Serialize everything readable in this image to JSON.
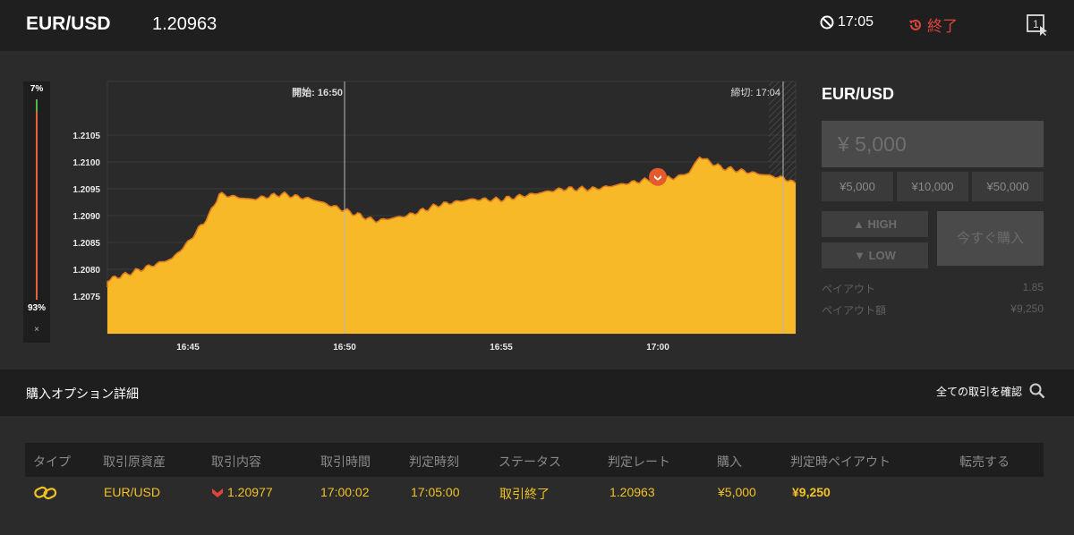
{
  "top": {
    "pair": "EUR/USD",
    "price": "1.20963",
    "clock": "17:05",
    "end_label": "終了",
    "icon_expiry": "clock-ban-icon",
    "icon_end": "history-icon",
    "icon_window": "window-one-icon"
  },
  "sentiment": {
    "up": "7%",
    "down": "93%",
    "close": "×"
  },
  "chart_data": {
    "type": "area",
    "y_ticks": [
      "1.2105",
      "1.2100",
      "1.2095",
      "1.2090",
      "1.2085",
      "1.2080",
      "1.2075"
    ],
    "x_ticks": [
      "16:45",
      "16:50",
      "16:55",
      "17:00"
    ],
    "start_label": "開始: 16:50",
    "end_label": "締切: 17:04",
    "ylim": [
      1.2068,
      1.2115
    ],
    "colors": {
      "fill": "#f7b928",
      "line": "#e07a1e",
      "marker": "#e35a2b",
      "bg": "#2a2a2a"
    },
    "series": [
      {
        "x": [
          "16:41:20",
          "16:42",
          "16:43",
          "16:44",
          "16:44:30",
          "16:45",
          "16:45:40",
          "16:46",
          "16:47",
          "16:48",
          "16:49",
          "16:50",
          "16:51",
          "16:52",
          "16:53",
          "16:54",
          "16:55",
          "16:56",
          "16:57",
          "16:58",
          "16:59",
          "17:00",
          "17:00:30",
          "17:01",
          "17:01:20",
          "17:02",
          "17:03",
          "17:04",
          "17:05"
        ],
        "y": [
          1.2077,
          1.2078,
          1.2079,
          1.2081,
          1.2082,
          1.2085,
          1.209,
          1.2094,
          1.2093,
          1.2094,
          1.2093,
          1.2091,
          1.2089,
          1.209,
          1.2092,
          1.2093,
          1.2093,
          1.2094,
          1.2095,
          1.2095,
          1.2096,
          1.2097,
          1.2097,
          1.2098,
          1.2101,
          1.2099,
          1.2098,
          1.2097,
          1.2096
        ]
      }
    ],
    "marker": {
      "x": "17:00",
      "y": 1.20977
    }
  },
  "sidebar": {
    "pair": "EUR/USD",
    "amount": "¥ 5,000",
    "chips": [
      "¥5,000",
      "¥10,000",
      "¥50,000"
    ],
    "high": "HIGH",
    "low": "LOW",
    "buy_now": "今すぐ購入",
    "payout_label": "ペイアウト",
    "payout_value": "1.85",
    "payout_amount_label": "ペイアウト額",
    "payout_amount_value": "¥9,250"
  },
  "detail": {
    "title": "購入オプション詳細",
    "all_trades": "全ての取引を確認"
  },
  "table": {
    "headers": [
      "タイプ",
      "取引原資産",
      "取引内容",
      "取引時間",
      "判定時刻",
      "ステータス",
      "判定レート",
      "購入",
      "判定時ペイアウト",
      "転売する"
    ],
    "row": {
      "type_icon": "link-chain-icon",
      "asset": "EUR/USD",
      "direction_icon": "low-arrow-icon",
      "content": "1.20977",
      "trade_time": "17:00:02",
      "judge_time": "17:05:00",
      "status": "取引終了",
      "rate": "1.20963",
      "purchase": "¥5,000",
      "payout": "¥9,250"
    }
  }
}
